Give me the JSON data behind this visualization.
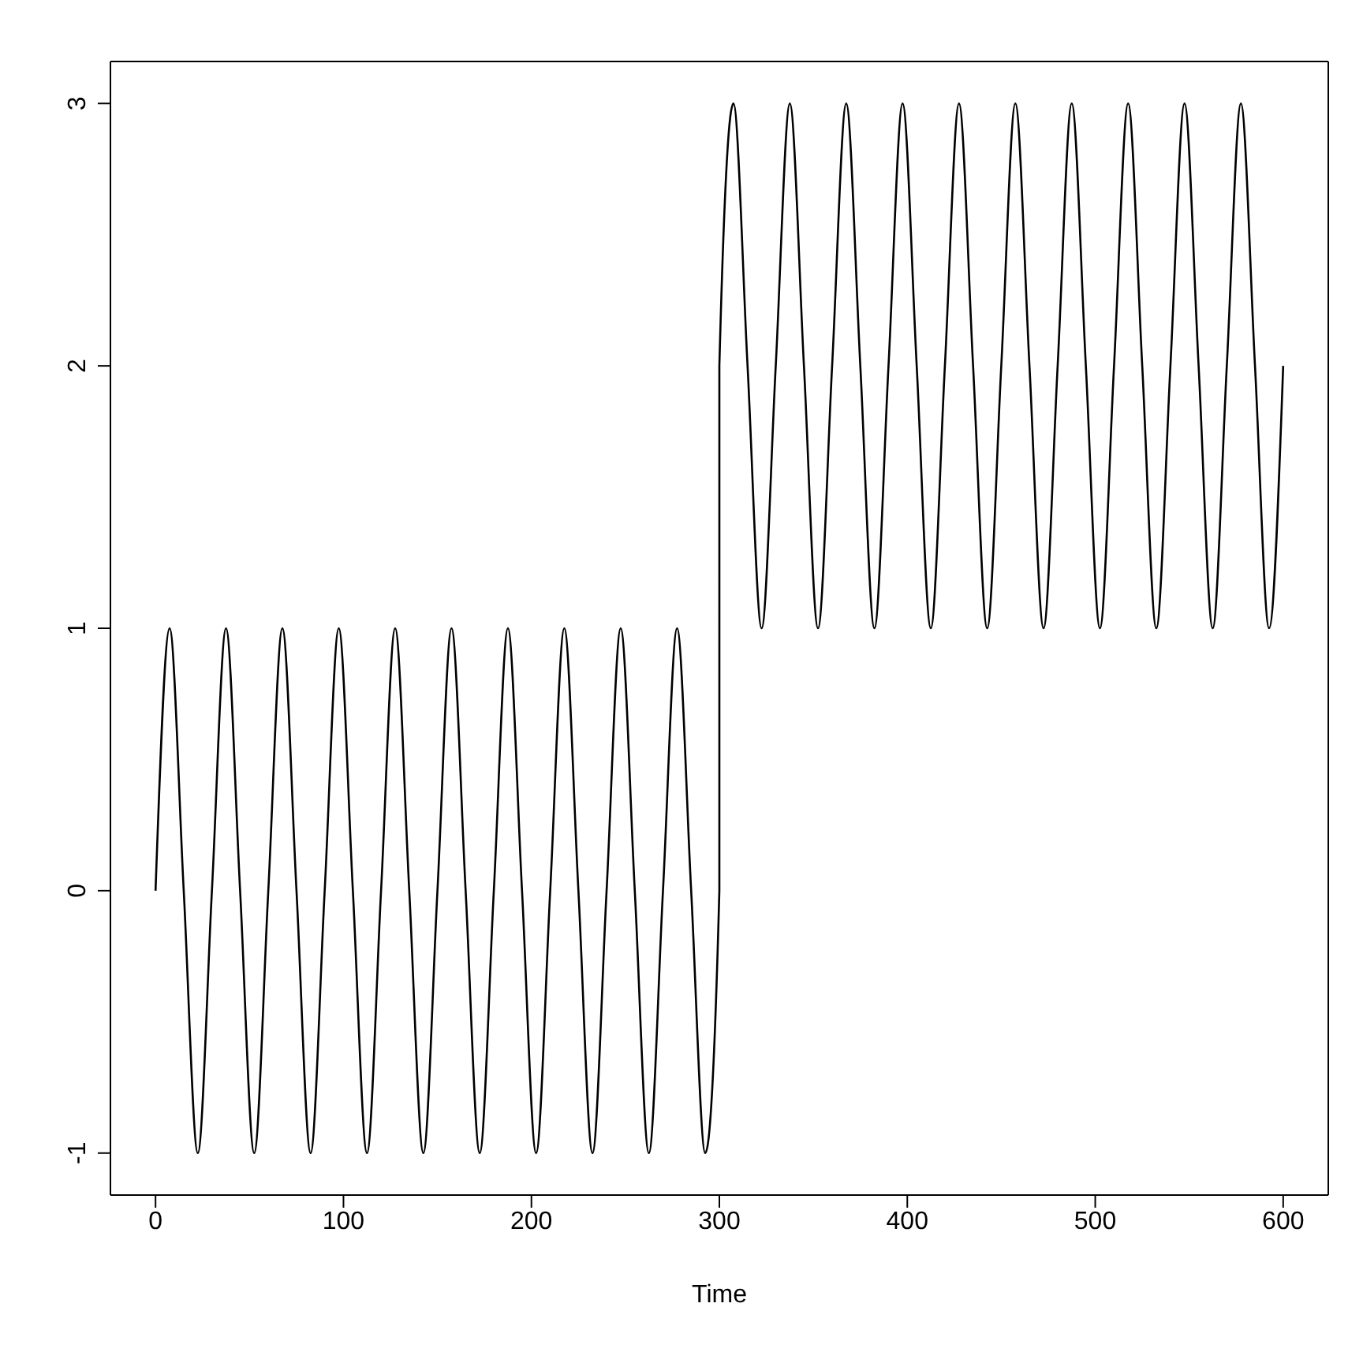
{
  "chart_data": {
    "type": "line",
    "xlabel": "Time",
    "x": [
      0,
      7.5,
      15,
      22.5,
      30,
      37.5,
      45,
      52.5,
      60,
      67.5,
      75,
      82.5,
      90,
      97.5,
      105,
      112.5,
      120,
      127.5,
      135,
      142.5,
      150,
      157.5,
      165,
      172.5,
      180,
      187.5,
      195,
      202.5,
      210,
      217.5,
      225,
      232.5,
      240,
      247.5,
      255,
      262.5,
      270,
      277.5,
      285,
      292.5,
      300,
      300,
      307.5,
      315,
      322.5,
      330,
      337.5,
      345,
      352.5,
      360,
      367.5,
      375,
      382.5,
      390,
      397.5,
      405,
      412.5,
      420,
      427.5,
      435,
      442.5,
      450,
      457.5,
      465,
      472.5,
      480,
      487.5,
      495,
      502.5,
      510,
      517.5,
      525,
      532.5,
      540,
      547.5,
      555,
      562.5,
      570,
      577.5,
      585,
      592.5,
      600
    ],
    "series": [
      {
        "color": "#000000",
        "values": [
          0,
          1,
          0,
          -1,
          0,
          1,
          0,
          -1,
          0,
          1,
          0,
          -1,
          0,
          1,
          0,
          -1,
          0,
          1,
          0,
          -1,
          0,
          1,
          0,
          -1,
          0,
          1,
          0,
          -1,
          0,
          1,
          0,
          -1,
          0,
          1,
          0,
          -1,
          0,
          1,
          0,
          -1,
          0,
          2,
          3,
          2,
          1,
          2,
          3,
          2,
          1,
          2,
          3,
          2,
          1,
          2,
          3,
          2,
          1,
          2,
          3,
          2,
          1,
          2,
          3,
          2,
          1,
          2,
          3,
          2,
          1,
          2,
          3,
          2,
          1,
          2,
          3,
          2,
          1,
          2,
          3,
          2,
          1,
          2
        ]
      }
    ],
    "xlim": [
      -24,
      624
    ],
    "xticks": [
      0,
      100,
      200,
      300,
      400,
      500,
      600
    ],
    "ylim": [
      -1.16,
      3.16
    ],
    "yticks": [
      -1,
      0,
      1,
      2,
      3
    ],
    "marker": "none",
    "line_style": "solid"
  }
}
